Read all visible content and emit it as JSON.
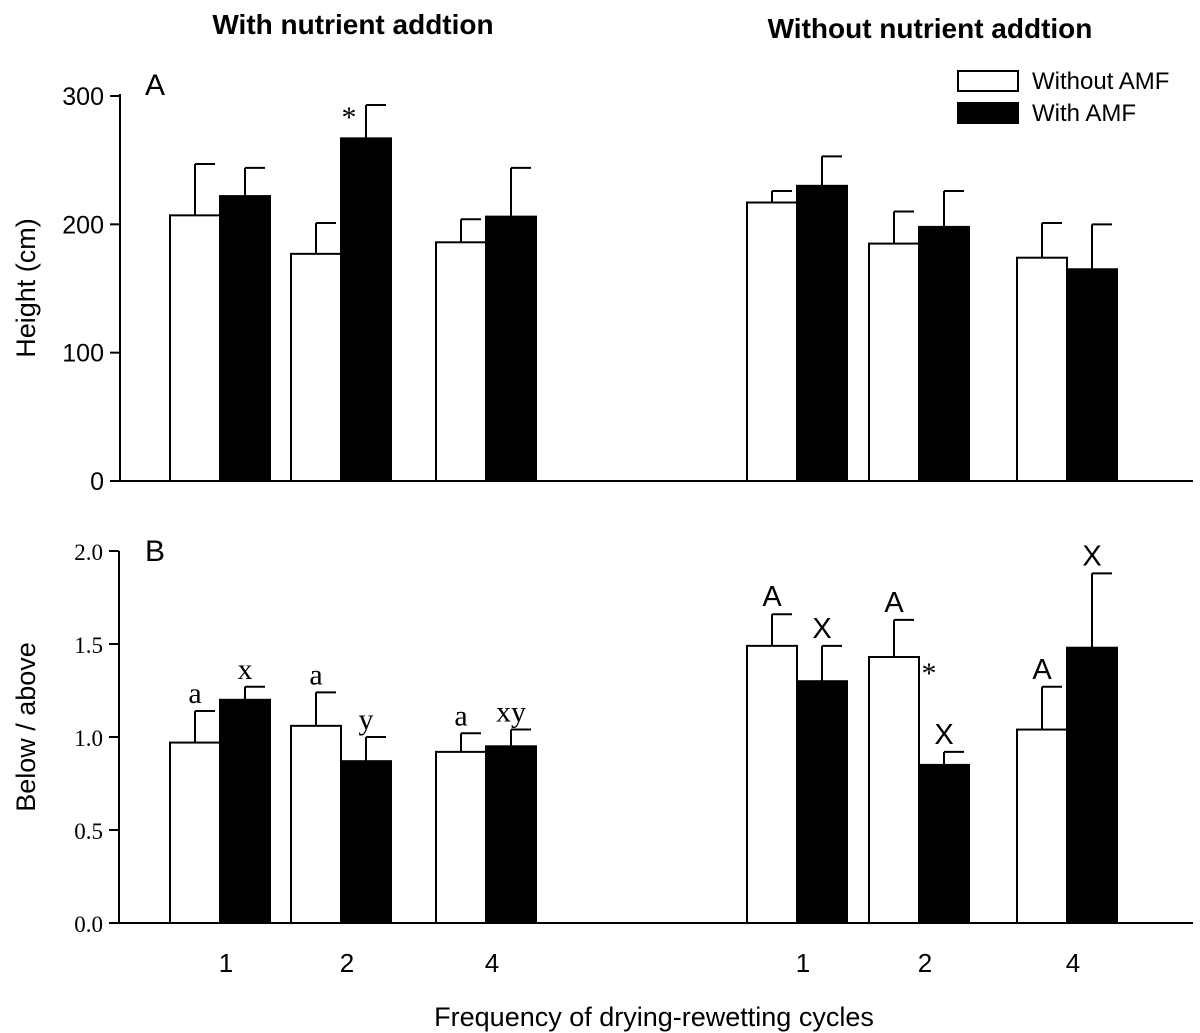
{
  "groups": [
    "With nutrient addtion",
    "Without nutrient addtion"
  ],
  "xlabel": "Frequency of drying-rewetting cycles",
  "legend": [
    {
      "name": "Without AMF",
      "color": "#ffffff"
    },
    {
      "name": "With AMF",
      "color": "#000000"
    }
  ],
  "chart_data": [
    {
      "type": "bar",
      "panel": "A",
      "ylabel": "Height (cm)",
      "ylim": [
        0,
        300
      ],
      "yticks": [
        "0",
        "100",
        "200",
        "300"
      ],
      "categories": [
        "1",
        "2",
        "4"
      ],
      "groups": [
        "With nutrient addtion",
        "Without nutrient addtion"
      ],
      "series": [
        {
          "name": "Without AMF",
          "values": [
            [
              207,
              177,
              186
            ],
            [
              217,
              185,
              174
            ]
          ],
          "errors": [
            [
              40,
              24,
              18
            ],
            [
              9,
              25,
              27
            ]
          ]
        },
        {
          "name": "With AMF",
          "values": [
            [
              222,
              267,
              206
            ],
            [
              230,
              198,
              165
            ]
          ],
          "errors": [
            [
              22,
              26,
              38
            ],
            [
              23,
              28,
              35
            ]
          ]
        }
      ],
      "annotations": [
        {
          "group": 0,
          "category": 1,
          "series": 1,
          "text": "*"
        }
      ],
      "grid": false
    },
    {
      "type": "bar",
      "panel": "B",
      "ylabel": "Below / above",
      "ylim": [
        0,
        2.0
      ],
      "yticks": [
        "0.0",
        "0.5",
        "1.0",
        "1.5",
        "2.0"
      ],
      "categories": [
        "1",
        "2",
        "4"
      ],
      "groups": [
        "With nutrient addtion",
        "Without nutrient addtion"
      ],
      "series": [
        {
          "name": "Without AMF",
          "values": [
            [
              0.97,
              1.06,
              0.92
            ],
            [
              1.49,
              1.43,
              1.04
            ]
          ],
          "errors": [
            [
              0.17,
              0.18,
              0.1
            ],
            [
              0.17,
              0.2,
              0.23
            ]
          ]
        },
        {
          "name": "With AMF",
          "values": [
            [
              1.2,
              0.87,
              0.95
            ],
            [
              1.3,
              0.85,
              1.48
            ]
          ],
          "errors": [
            [
              0.07,
              0.13,
              0.09
            ],
            [
              0.19,
              0.07,
              0.4
            ]
          ]
        }
      ],
      "annotations": [
        {
          "group": 0,
          "category": 0,
          "series": 0,
          "text": "a"
        },
        {
          "group": 0,
          "category": 0,
          "series": 1,
          "text": "x"
        },
        {
          "group": 0,
          "category": 1,
          "series": 0,
          "text": "a"
        },
        {
          "group": 0,
          "category": 1,
          "series": 1,
          "text": "y"
        },
        {
          "group": 0,
          "category": 2,
          "series": 0,
          "text": "a"
        },
        {
          "group": 0,
          "category": 2,
          "series": 1,
          "text": "xy"
        },
        {
          "group": 1,
          "category": 0,
          "series": 0,
          "text": "A"
        },
        {
          "group": 1,
          "category": 0,
          "series": 1,
          "text": "X"
        },
        {
          "group": 1,
          "category": 1,
          "series": 0,
          "text": "A"
        },
        {
          "group": 1,
          "category": 1,
          "series": 0,
          "text": "*",
          "side": "right"
        },
        {
          "group": 1,
          "category": 1,
          "series": 1,
          "text": "X"
        },
        {
          "group": 1,
          "category": 2,
          "series": 0,
          "text": "A"
        },
        {
          "group": 1,
          "category": 2,
          "series": 1,
          "text": "X"
        }
      ],
      "grid": false
    }
  ]
}
